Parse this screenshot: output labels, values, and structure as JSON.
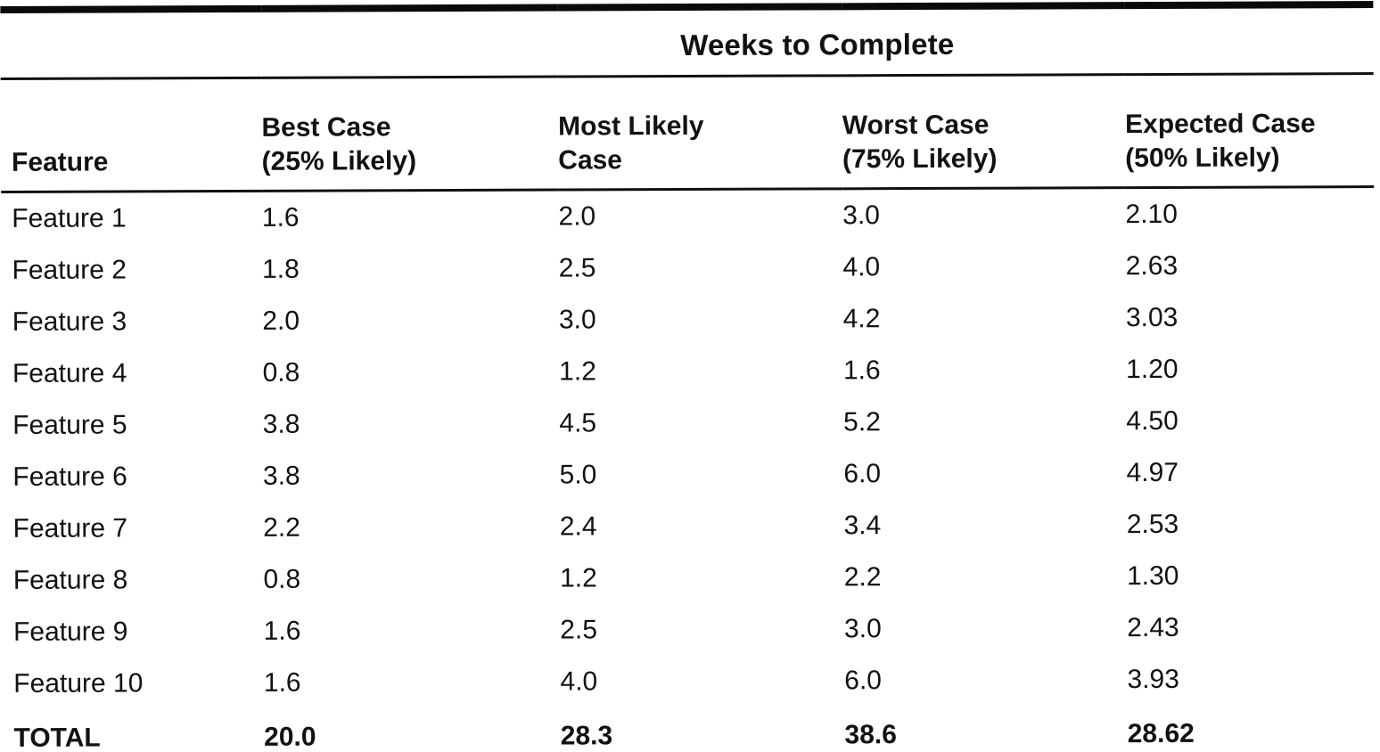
{
  "table": {
    "spanning_header": "Weeks to Complete",
    "columns": [
      {
        "lines": [
          "Feature"
        ]
      },
      {
        "lines": [
          "Best Case",
          "(25% Likely)"
        ]
      },
      {
        "lines": [
          "Most Likely",
          "Case"
        ]
      },
      {
        "lines": [
          "Worst Case",
          "(75% Likely)"
        ]
      },
      {
        "lines": [
          "Expected Case",
          "(50% Likely)"
        ]
      }
    ],
    "rows": [
      {
        "feature": "Feature 1",
        "best": "1.6",
        "most_likely": "2.0",
        "worst": "3.0",
        "expected": "2.10"
      },
      {
        "feature": "Feature 2",
        "best": "1.8",
        "most_likely": "2.5",
        "worst": "4.0",
        "expected": "2.63"
      },
      {
        "feature": "Feature 3",
        "best": "2.0",
        "most_likely": "3.0",
        "worst": "4.2",
        "expected": "3.03"
      },
      {
        "feature": "Feature 4",
        "best": "0.8",
        "most_likely": "1.2",
        "worst": "1.6",
        "expected": "1.20"
      },
      {
        "feature": "Feature 5",
        "best": "3.8",
        "most_likely": "4.5",
        "worst": "5.2",
        "expected": "4.50"
      },
      {
        "feature": "Feature 6",
        "best": "3.8",
        "most_likely": "5.0",
        "worst": "6.0",
        "expected": "4.97"
      },
      {
        "feature": "Feature 7",
        "best": "2.2",
        "most_likely": "2.4",
        "worst": "3.4",
        "expected": "2.53"
      },
      {
        "feature": "Feature 8",
        "best": "0.8",
        "most_likely": "1.2",
        "worst": "2.2",
        "expected": "1.30"
      },
      {
        "feature": "Feature 9",
        "best": "1.6",
        "most_likely": "2.5",
        "worst": "3.0",
        "expected": "2.43"
      },
      {
        "feature": "Feature 10",
        "best": "1.6",
        "most_likely": "4.0",
        "worst": "6.0",
        "expected": "3.93"
      }
    ],
    "total_row": {
      "feature": "TOTAL",
      "best": "20.0",
      "most_likely": "28.3",
      "worst": "38.6",
      "expected": "28.62"
    }
  }
}
